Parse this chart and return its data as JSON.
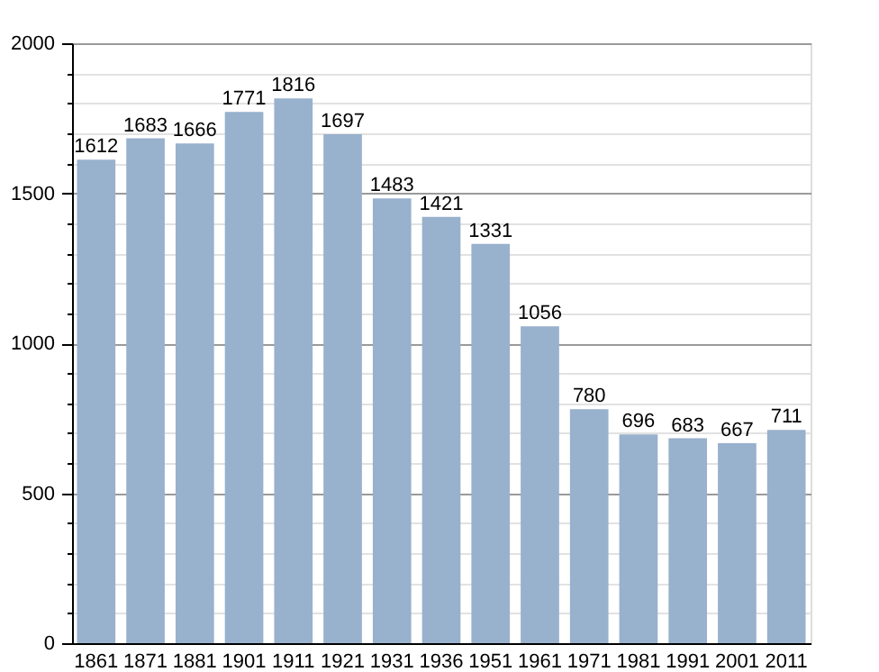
{
  "chart_data": {
    "type": "bar",
    "categories": [
      "1861",
      "1871",
      "1881",
      "1901",
      "1911",
      "1921",
      "1931",
      "1936",
      "1951",
      "1961",
      "1971",
      "1981",
      "1991",
      "2001",
      "2011"
    ],
    "values": [
      1612,
      1683,
      1666,
      1771,
      1816,
      1697,
      1483,
      1421,
      1331,
      1056,
      780,
      696,
      683,
      667,
      711
    ],
    "color": "#98b1cd",
    "data_labels": true,
    "grid": "y",
    "ylim": [
      0,
      2000
    ],
    "yticks": [
      0,
      {
        "value": 100,
        "label": null
      },
      {
        "value": 200,
        "label": null
      },
      {
        "value": 300,
        "label": null
      },
      {
        "value": 400,
        "label": null
      },
      500,
      {
        "value": 600,
        "label": null
      },
      {
        "value": 700,
        "label": null
      },
      {
        "value": 800,
        "label": null
      },
      {
        "value": 900,
        "label": null
      },
      1000,
      {
        "value": 1100,
        "label": null
      },
      {
        "value": 1200,
        "label": null
      },
      {
        "value": 1300,
        "label": null
      },
      {
        "value": 1400,
        "label": null
      },
      1500,
      {
        "value": 1600,
        "label": null
      },
      {
        "value": 1700,
        "label": null
      },
      {
        "value": 1800,
        "label": null
      },
      {
        "value": 1900,
        "label": null
      },
      2000
    ]
  }
}
